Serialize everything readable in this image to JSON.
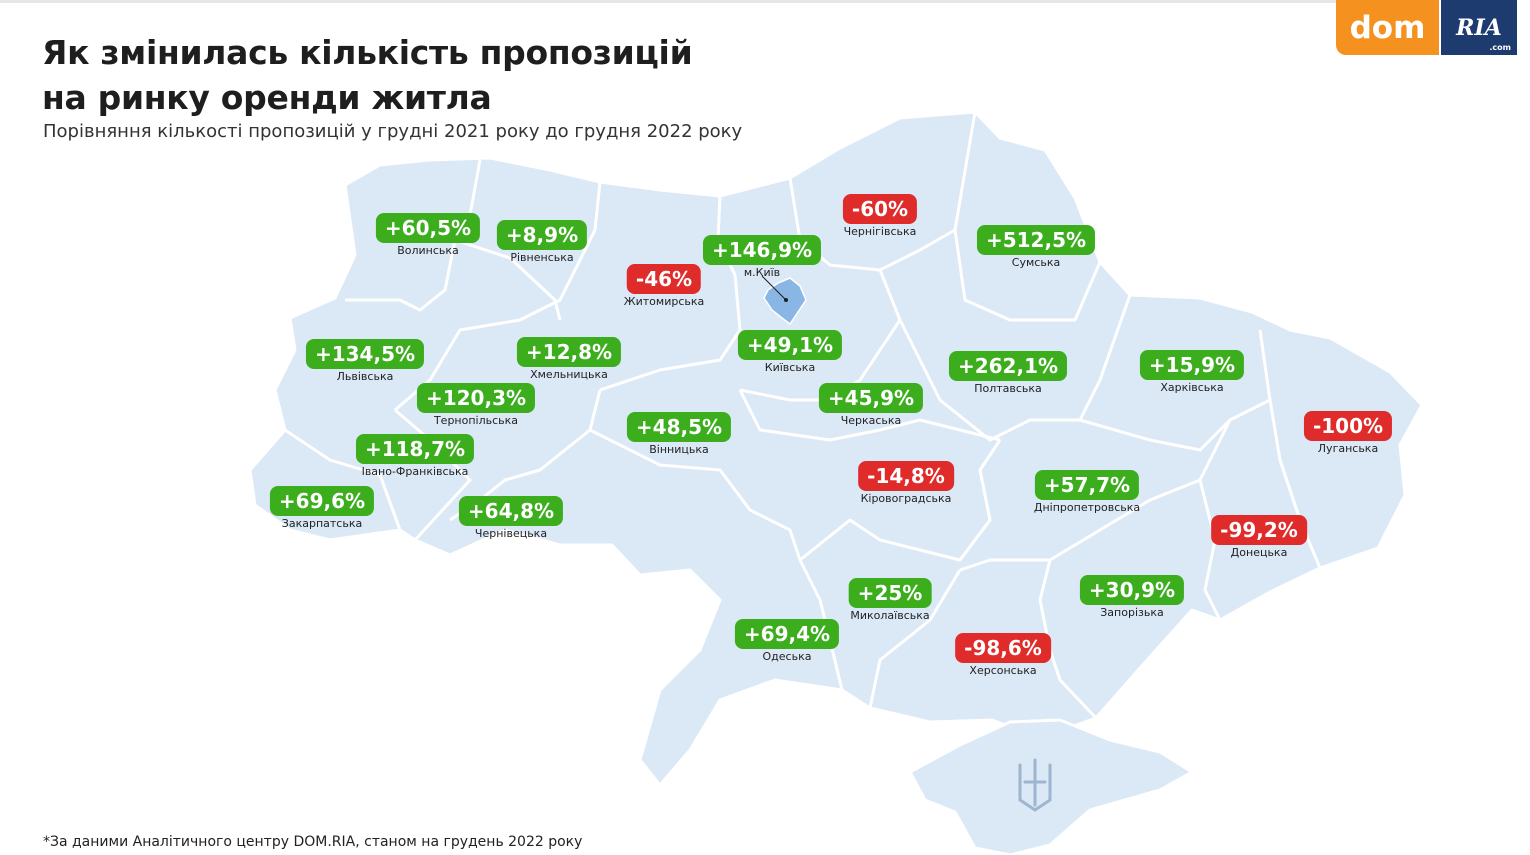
{
  "title": "Як змінилась кількість пропозицій\nна ринку оренди житла",
  "subtitle": "Порівняння кількості пропозицій у грудні 2021 року до грудня 2022 року",
  "footnote": "*За даними Аналітичного центру DOM.RIA, станом на грудень 2022 року",
  "logo": {
    "left": "dom",
    "right": "RIA",
    "suffix": ".com"
  },
  "colors": {
    "map": "#dbe8f6",
    "border": "#ffffff",
    "positive": "#3cae1e",
    "negative": "#e02b2b",
    "kyiv_city": "#8ab6e6"
  },
  "regions": [
    {
      "name": "Волинська",
      "value": "+60,5%",
      "trend": "up"
    },
    {
      "name": "Рівненська",
      "value": "+8,9%",
      "trend": "up"
    },
    {
      "name": "Житомирська",
      "value": "-46%",
      "trend": "down"
    },
    {
      "name": "м.Київ",
      "value": "+146,9%",
      "trend": "up"
    },
    {
      "name": "Чернігівська",
      "value": "-60%",
      "trend": "down"
    },
    {
      "name": "Сумська",
      "value": "+512,5%",
      "trend": "up"
    },
    {
      "name": "Львівська",
      "value": "+134,5%",
      "trend": "up"
    },
    {
      "name": "Хмельницька",
      "value": "+12,8%",
      "trend": "up"
    },
    {
      "name": "Київська",
      "value": "+49,1%",
      "trend": "up"
    },
    {
      "name": "Полтавська",
      "value": "+262,1%",
      "trend": "up"
    },
    {
      "name": "Харківська",
      "value": "+15,9%",
      "trend": "up"
    },
    {
      "name": "Тернопільська",
      "value": "+120,3%",
      "trend": "up"
    },
    {
      "name": "Черкаська",
      "value": "+45,9%",
      "trend": "up"
    },
    {
      "name": "Вінницька",
      "value": "+48,5%",
      "trend": "up"
    },
    {
      "name": "Луганська",
      "value": "-100%",
      "trend": "down"
    },
    {
      "name": "Івано-Франківська",
      "value": "+118,7%",
      "trend": "up"
    },
    {
      "name": "Кіровоградська",
      "value": "-14,8%",
      "trend": "down"
    },
    {
      "name": "Закарпатська",
      "value": "+69,6%",
      "trend": "up"
    },
    {
      "name": "Дніпропетровська",
      "value": "+57,7%",
      "trend": "up"
    },
    {
      "name": "Чернівецька",
      "value": "+64,8%",
      "trend": "up"
    },
    {
      "name": "Донецька",
      "value": "-99,2%",
      "trend": "down"
    },
    {
      "name": "Миколаївська",
      "value": "+25%",
      "trend": "up"
    },
    {
      "name": "Запорізька",
      "value": "+30,9%",
      "trend": "up"
    },
    {
      "name": "Одеська",
      "value": "+69,4%",
      "trend": "up"
    },
    {
      "name": "Херсонська",
      "value": "-98,6%",
      "trend": "down"
    }
  ]
}
